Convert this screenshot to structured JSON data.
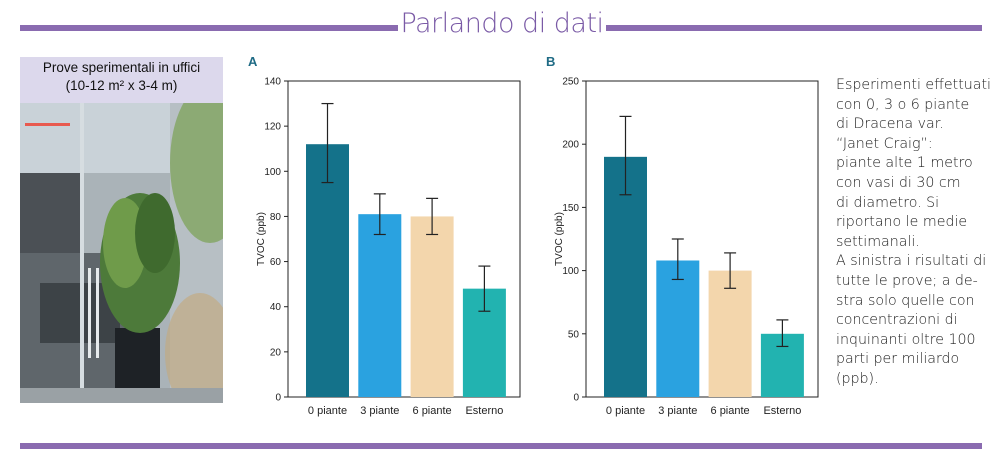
{
  "header": {
    "title": "Parlando di dati"
  },
  "photo": {
    "caption": "Prove sperimentali in uffici\n(10-12 m² x 3-4 m)"
  },
  "side_text": "Esperimenti effettuati\ncon 0, 3 o 6 piante\ndi Dracena var.\n“Janet Craig”:\npiante alte 1 metro\ncon vasi di 30 cm\ndi diametro. Si\nriportano le medie\nsettimanali.\nA sinistra i risultati di\ntutte le prove; a de-\nstra solo quelle con\nconcentrazioni di\ninquinanti oltre 100\nparti per miliardo\n(ppb).",
  "colors": {
    "accent": "#8a6bb0",
    "bar_0": "#14728a",
    "bar_3": "#2aa2e0",
    "bar_6": "#f3d6ac",
    "bar_ext": "#22b3b0"
  },
  "chart_data": [
    {
      "type": "bar",
      "panel": "A",
      "title": "",
      "xlabel": "",
      "ylabel": "TVOC (ppb)",
      "categories": [
        "0 piante",
        "3 piante",
        "6 piante",
        "Esterno"
      ],
      "values": [
        112,
        81,
        80,
        48
      ],
      "error_low": [
        95,
        72,
        72,
        38
      ],
      "error_high": [
        130,
        90,
        88,
        58
      ],
      "ylim": [
        0,
        140
      ],
      "yticks": [
        0,
        20,
        40,
        60,
        80,
        100,
        120,
        140
      ],
      "grid": false
    },
    {
      "type": "bar",
      "panel": "B",
      "title": "",
      "xlabel": "",
      "ylabel": "TVOC (ppb)",
      "categories": [
        "0 piante",
        "3 piante",
        "6 piante",
        "Esterno"
      ],
      "values": [
        190,
        108,
        100,
        50
      ],
      "error_low": [
        160,
        93,
        86,
        40
      ],
      "error_high": [
        222,
        125,
        114,
        61
      ],
      "ylim": [
        0,
        250
      ],
      "yticks": [
        0,
        50,
        100,
        150,
        200,
        250
      ],
      "grid": false
    }
  ]
}
